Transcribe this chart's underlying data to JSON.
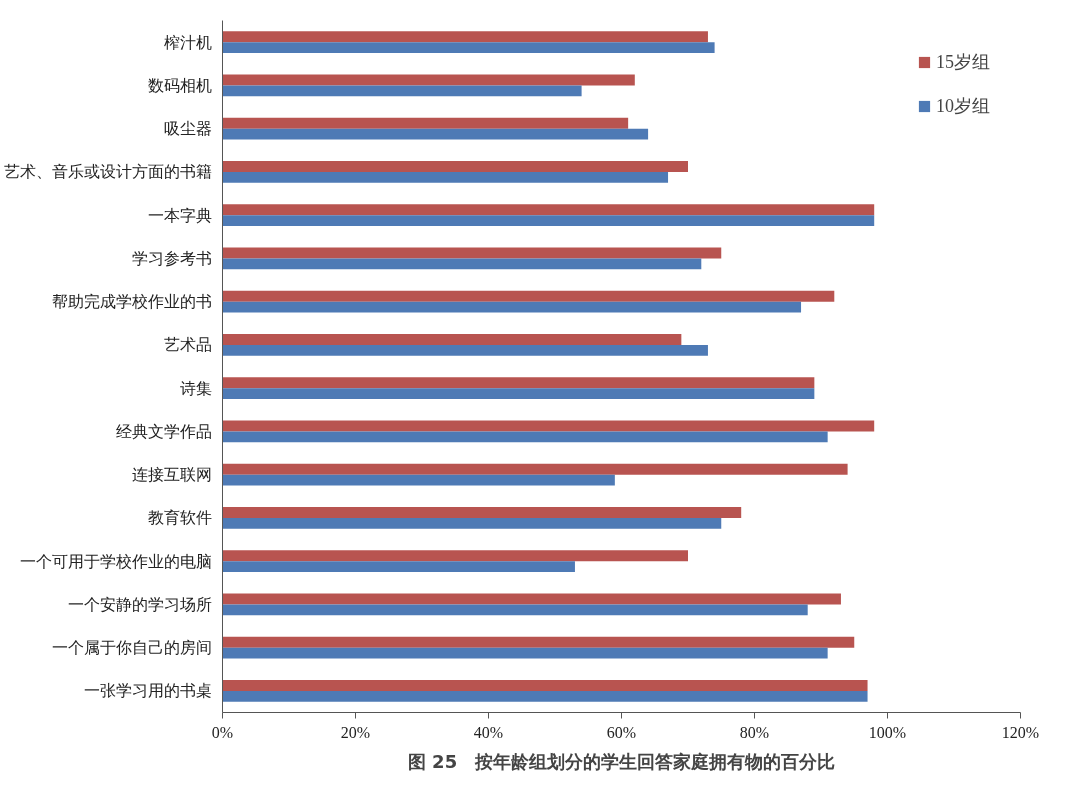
{
  "chart_data": {
    "type": "bar",
    "orientation": "horizontal",
    "title": "图 25　按年龄组划分的学生回答家庭拥有物的百分比",
    "categories": [
      "榨汁机",
      "数码相机",
      "吸尘器",
      "艺术、音乐或设计方面的书籍",
      "一本字典",
      "学习参考书",
      "帮助完成学校作业的书",
      "艺术品",
      "诗集",
      "经典文学作品",
      "连接互联网",
      "教育软件",
      "一个可用于学校作业的电脑",
      "一个安静的学习场所",
      "一个属于你自己的房间",
      "一张学习用的书桌"
    ],
    "series": [
      {
        "name": "15岁组",
        "color": "#b85450",
        "values": [
          73,
          62,
          61,
          70,
          98,
          75,
          92,
          69,
          89,
          98,
          94,
          78,
          70,
          93,
          95,
          97
        ]
      },
      {
        "name": "10岁组",
        "color": "#4e7ab5",
        "values": [
          74,
          54,
          64,
          67,
          98,
          72,
          87,
          73,
          89,
          91,
          59,
          75,
          53,
          88,
          91,
          97
        ]
      }
    ],
    "xlim": [
      0,
      120
    ],
    "xticks": [
      {
        "value": 0,
        "label": "0%"
      },
      {
        "value": 20,
        "label": "20%"
      },
      {
        "value": 40,
        "label": "40%"
      },
      {
        "value": 60,
        "label": "60%"
      },
      {
        "value": 80,
        "label": "80%"
      },
      {
        "value": 100,
        "label": "100%"
      },
      {
        "value": 120,
        "label": "120%"
      }
    ],
    "grid": false,
    "legend": "top right"
  }
}
